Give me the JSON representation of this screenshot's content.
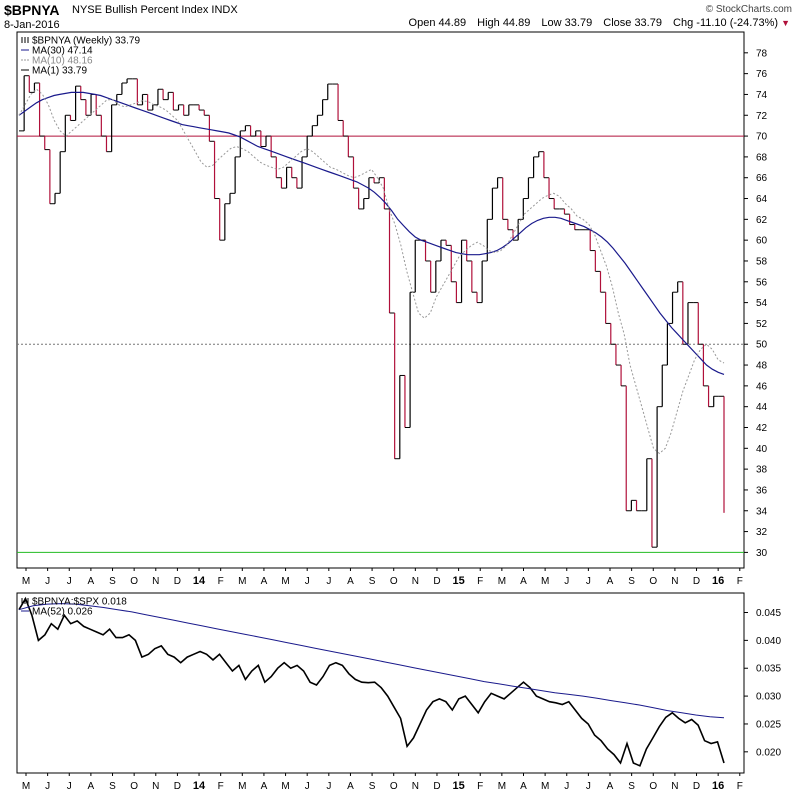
{
  "header": {
    "symbol": "$BPNYA",
    "name": "NYSE Bullish Percent Index INDX",
    "date": "8-Jan-2016",
    "credit": "© StockCharts.com",
    "open_label": "Open",
    "open": "44.89",
    "high_label": "High",
    "high": "44.89",
    "low_label": "Low",
    "low": "33.79",
    "close_label": "Close",
    "close": "33.79",
    "chg_label": "Chg",
    "chg": "-11.10 (-24.73%)"
  },
  "colors": {
    "up": "#000000",
    "down": "#b0103a",
    "ma30": "#1a1a8c",
    "ma10": "#999999",
    "h70": "#b0103a",
    "h30": "#22bb22",
    "h50": "#777777"
  },
  "chart_data": [
    {
      "type": "line",
      "title": "$BPNYA (Weekly) 33.79",
      "legend": [
        {
          "label": "$BPNYA (Weekly) 33.79",
          "style": "price"
        },
        {
          "label": "MA(30) 47.14",
          "style": "ma30"
        },
        {
          "label": "MA(10) 48.16",
          "style": "ma10"
        },
        {
          "label": "MA(1) 33.79",
          "style": "ma1"
        }
      ],
      "legend_position": "top-left",
      "ylim": [
        28.5,
        80
      ],
      "yticks": [
        30,
        32,
        34,
        36,
        38,
        40,
        42,
        44,
        46,
        48,
        50,
        52,
        54,
        56,
        58,
        60,
        62,
        64,
        66,
        68,
        70,
        72,
        74,
        76,
        78
      ],
      "hlines": [
        {
          "y": 70,
          "color": "h70"
        },
        {
          "y": 50,
          "color": "h50",
          "dashed": true
        },
        {
          "y": 30,
          "color": "h30"
        }
      ],
      "x_labels": [
        "M",
        "J",
        "J",
        "A",
        "S",
        "O",
        "N",
        "D",
        "14",
        "F",
        "M",
        "A",
        "M",
        "J",
        "J",
        "A",
        "S",
        "O",
        "N",
        "D",
        "15",
        "F",
        "M",
        "A",
        "M",
        "J",
        "J",
        "A",
        "S",
        "O",
        "N",
        "D",
        "16",
        "F"
      ],
      "bold_labels": [
        "14",
        "15",
        "16"
      ],
      "series": [
        {
          "key": "price",
          "values": [
            70.5,
            75.8,
            74.2,
            75.1,
            70,
            68.7,
            63.5,
            64.5,
            68.5,
            72,
            71.5,
            74.8,
            73.5,
            72,
            74,
            72,
            70,
            68.5,
            73,
            74,
            75.1,
            75.5,
            75.5,
            73,
            74,
            72.5,
            73,
            74.5,
            73.5,
            74.2,
            72.5,
            73,
            72,
            73,
            73,
            72.5,
            72,
            69.5,
            64,
            60,
            63.5,
            64.5,
            68,
            70.5,
            71,
            70,
            70.5,
            69,
            70,
            68,
            66,
            65,
            67,
            66,
            65,
            68,
            70,
            71,
            72,
            73.5,
            75,
            75,
            71.5,
            70,
            68,
            65,
            63,
            64,
            66,
            65.5,
            66,
            63,
            53,
            39,
            47,
            42,
            55,
            60,
            60,
            58,
            55,
            58,
            60,
            59.5,
            56,
            54,
            60,
            58,
            55,
            54,
            58,
            62,
            65,
            66,
            62,
            61,
            60,
            62,
            64,
            66,
            68,
            68.5,
            66,
            64,
            63,
            63,
            62.5,
            61.5,
            61,
            61,
            61,
            59,
            57,
            55,
            52,
            50,
            48,
            46,
            34,
            35,
            34,
            34,
            39,
            30.5,
            44,
            48,
            52,
            55,
            56,
            50,
            54,
            54,
            50,
            46,
            44,
            45,
            45,
            33.8
          ]
        },
        {
          "key": "ma30",
          "values": [
            72,
            72.4,
            72.8,
            73.2,
            73.5,
            73.7,
            73.9,
            74,
            74.1,
            74.2,
            74.2,
            74.2,
            74.1,
            74,
            73.9,
            73.7,
            73.5,
            73.3,
            73.1,
            72.9,
            72.7,
            72.5,
            72.3,
            72.1,
            71.9,
            71.7,
            71.5,
            71.3,
            71.1,
            71,
            70.9,
            70.8,
            70.7,
            70.6,
            70.5,
            70.4,
            70.3,
            70.1,
            69.9,
            69.6,
            69.3,
            69,
            68.8,
            68.6,
            68.4,
            68.2,
            68,
            67.8,
            67.6,
            67.4,
            67.2,
            67,
            66.8,
            66.6,
            66.4,
            66.2,
            66,
            65.8,
            65.6,
            65.3,
            65,
            64.6,
            64.1,
            63.5,
            62.8,
            62,
            61.4,
            60.8,
            60.3,
            60,
            59.8,
            59.6,
            59.4,
            59.2,
            59,
            58.8,
            58.7,
            58.6,
            58.6,
            58.6,
            58.7,
            58.8,
            59,
            59.3,
            59.7,
            60.2,
            60.7,
            61.2,
            61.6,
            61.9,
            62.1,
            62.2,
            62.2,
            62.1,
            61.9,
            61.7,
            61.5,
            61.3,
            61,
            60.7,
            60.3,
            59.8,
            59.2,
            58.5,
            57.8,
            57,
            56.2,
            55.4,
            54.6,
            53.8,
            53,
            52.3,
            51.6,
            51,
            50.4,
            49.8,
            49.2,
            48.6,
            48,
            47.6,
            47.3,
            47.1
          ]
        },
        {
          "key": "ma10",
          "values": [
            72,
            73,
            74,
            74.5,
            74,
            73,
            71.5,
            70.5,
            70,
            70.5,
            71,
            71.5,
            72,
            72.5,
            73,
            73.5,
            73.5,
            73,
            72.8,
            73,
            73.2,
            73.4,
            73.3,
            73,
            72.8,
            72.5,
            72,
            71.5,
            70.5,
            69.5,
            68.5,
            67.5,
            67,
            67.2,
            67.8,
            68.3,
            68.8,
            69,
            68.8,
            68.5,
            68,
            67.5,
            67.2,
            67,
            66.8,
            67,
            67.5,
            68,
            68.5,
            68.8,
            68.5,
            68,
            67.5,
            67,
            66.8,
            66.5,
            66.2,
            66,
            66.2,
            66.5,
            66.8,
            66,
            65,
            63,
            61.5,
            59.5,
            57,
            55,
            53,
            52.5,
            53,
            54.5,
            55.5,
            56.5,
            57.5,
            58.5,
            59,
            59.5,
            59.8,
            59.5,
            59,
            58.8,
            59,
            59.5,
            60.5,
            61.5,
            62.5,
            63,
            63.5,
            64,
            64.3,
            64.5,
            64.2,
            63.5,
            63,
            62.3,
            62,
            61.5,
            60.5,
            59,
            57.5,
            55.5,
            53,
            51,
            48,
            46,
            44,
            42,
            40,
            39.5,
            40,
            41.5,
            43.5,
            45.5,
            47,
            48.5,
            49.5,
            50,
            49.5,
            48.5,
            48.2
          ]
        }
      ]
    },
    {
      "type": "line",
      "title": "$BPNYA:$SPX 0.018",
      "legend": [
        {
          "label": "$BPNYA:$SPX 0.018",
          "style": "ratio"
        },
        {
          "label": "MA(52) 0.026",
          "style": "ma52"
        }
      ],
      "legend_position": "top-left",
      "ylim": [
        0.0162,
        0.0485
      ],
      "yticks": [
        0.02,
        0.025,
        0.03,
        0.035,
        0.04,
        0.045
      ],
      "ytick_labels": [
        "0.020",
        "0.025",
        "0.030",
        "0.035",
        "0.040",
        "0.045"
      ],
      "x_labels": [
        "M",
        "J",
        "J",
        "A",
        "S",
        "O",
        "N",
        "D",
        "14",
        "F",
        "M",
        "A",
        "M",
        "J",
        "J",
        "A",
        "S",
        "O",
        "N",
        "D",
        "15",
        "F",
        "M",
        "A",
        "M",
        "J",
        "J",
        "A",
        "S",
        "O",
        "N",
        "D",
        "16",
        "F"
      ],
      "bold_labels": [
        "14",
        "15",
        "16"
      ],
      "series": [
        {
          "key": "ratio",
          "values": [
            0.0455,
            0.0475,
            0.0445,
            0.04,
            0.041,
            0.043,
            0.042,
            0.0445,
            0.043,
            0.0435,
            0.0425,
            0.042,
            0.0415,
            0.041,
            0.042,
            0.0405,
            0.0405,
            0.041,
            0.04,
            0.037,
            0.0375,
            0.0385,
            0.039,
            0.0375,
            0.037,
            0.036,
            0.037,
            0.0375,
            0.038,
            0.0375,
            0.0365,
            0.0375,
            0.036,
            0.0345,
            0.0355,
            0.033,
            0.0345,
            0.0355,
            0.0325,
            0.0335,
            0.035,
            0.036,
            0.035,
            0.0355,
            0.0345,
            0.0325,
            0.032,
            0.0335,
            0.0355,
            0.036,
            0.0355,
            0.034,
            0.033,
            0.0325,
            0.0324,
            0.0325,
            0.0315,
            0.03,
            0.028,
            0.026,
            0.021,
            0.0225,
            0.025,
            0.0275,
            0.029,
            0.0295,
            0.029,
            0.0275,
            0.0295,
            0.03,
            0.0285,
            0.027,
            0.029,
            0.0305,
            0.03,
            0.0295,
            0.0305,
            0.0315,
            0.0325,
            0.0315,
            0.03,
            0.0295,
            0.029,
            0.0288,
            0.0285,
            0.029,
            0.0275,
            0.026,
            0.025,
            0.023,
            0.022,
            0.0205,
            0.0195,
            0.018,
            0.0215,
            0.018,
            0.0175,
            0.0205,
            0.0225,
            0.0245,
            0.0262,
            0.027,
            0.026,
            0.0252,
            0.0258,
            0.0248,
            0.022,
            0.0215,
            0.0218,
            0.018
          ]
        },
        {
          "key": "ma52",
          "values": [
            0.0455,
            0.0462,
            0.0465,
            0.0466,
            0.0465,
            0.0462,
            0.0459,
            0.0455,
            0.0451,
            0.0446,
            0.0441,
            0.0436,
            0.0431,
            0.0426,
            0.0421,
            0.0416,
            0.0411,
            0.0406,
            0.0401,
            0.0396,
            0.0391,
            0.0386,
            0.0381,
            0.0376,
            0.0371,
            0.0366,
            0.0361,
            0.0356,
            0.0351,
            0.0346,
            0.0341,
            0.0336,
            0.0331,
            0.0326,
            0.0322,
            0.0318,
            0.0314,
            0.031,
            0.0306,
            0.0303,
            0.03,
            0.0296,
            0.0292,
            0.0288,
            0.0284,
            0.0279,
            0.0274,
            0.027,
            0.0266,
            0.0263,
            0.0261
          ]
        }
      ]
    }
  ]
}
